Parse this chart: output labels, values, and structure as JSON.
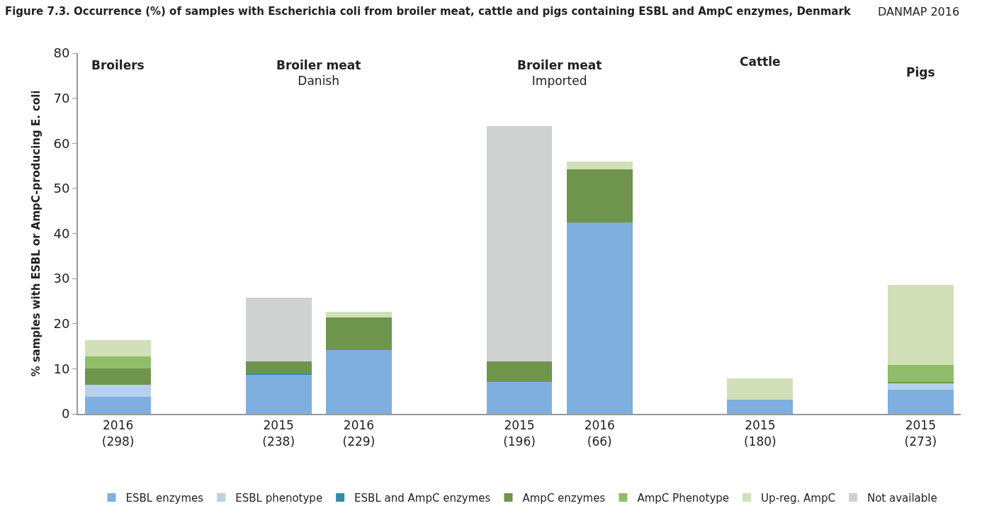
{
  "chart_data": {
    "type": "bar",
    "title": "Figure 7.3. Occurrence (%) of samples with Escherichia coli from broiler meat, cattle and pigs containing ESBL and AmpC enzymes, Denmark",
    "ylabel": "% samples with ESBL or AmpC-producing E. coli",
    "annotations": [
      "DANMAP 2016",
      "Broilers",
      "Broiler meat\nDanish",
      "Broiler meat\nImported",
      "Cattle",
      "Pigs"
    ],
    "categories": [
      "2016\n(298)",
      null,
      "2015\n(238)",
      "2016\n(229)",
      null,
      "2015\n(196)",
      "2016\n(66)",
      null,
      "2015\n(180)",
      null,
      "2015\n(273)"
    ],
    "stacked": true,
    "series": [
      {
        "name": "ESBL enzymes",
        "color": "#7fafde",
        "values": [
          3.8,
          null,
          8.7,
          14.2,
          null,
          7.1,
          42.4,
          null,
          3.1,
          null,
          5.3
        ]
      },
      {
        "name": "ESBL phenotype",
        "color": "#b7d1ec",
        "values": [
          2.6,
          null,
          0,
          0,
          null,
          0,
          0,
          null,
          0,
          null,
          1.5
        ]
      },
      {
        "name": "ESBL and AmpC enzymes",
        "color": "#2e8fa8",
        "values": [
          0,
          null,
          0.3,
          0,
          null,
          0,
          0,
          null,
          0,
          null,
          0
        ]
      },
      {
        "name": "AmpC enzymes",
        "color": "#6e954b",
        "values": [
          3.7,
          null,
          2.7,
          7.1,
          null,
          4.5,
          11.9,
          null,
          0,
          null,
          0.3
        ]
      },
      {
        "name": "AmpC Phenotype",
        "color": "#8fbd6a",
        "values": [
          2.6,
          null,
          0,
          0,
          null,
          0,
          0,
          null,
          0,
          null,
          3.7
        ]
      },
      {
        "name": "Up-reg. AmpC",
        "color": "#d1e0b8",
        "values": [
          3.7,
          null,
          0,
          1.4,
          null,
          0,
          1.7,
          null,
          4.7,
          null,
          17.8
        ]
      },
      {
        "name": "Not available",
        "color": "#d0d2d1",
        "values": [
          0,
          null,
          14.0,
          0,
          null,
          52.2,
          0,
          null,
          0,
          null,
          0
        ]
      }
    ],
    "ylim": [
      0,
      80
    ],
    "yticks": [
      0,
      10,
      20,
      30,
      40,
      50,
      60,
      70,
      80
    ],
    "legend": "bottom"
  }
}
